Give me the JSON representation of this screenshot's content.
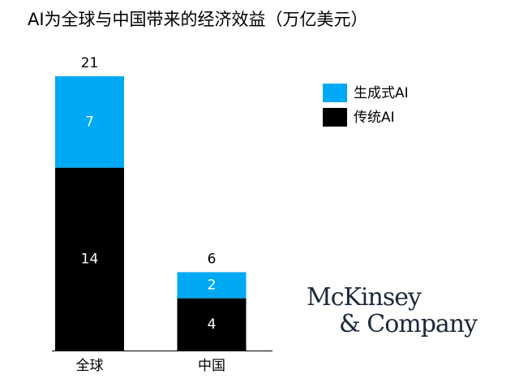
{
  "chart_data": {
    "type": "stacked-bar",
    "title": "AI为全球与中国带来的经济效益（万亿美元）",
    "categories": [
      "全球",
      "中国"
    ],
    "series": [
      {
        "name": "传统AI",
        "color": "#000000",
        "values": [
          14,
          4
        ]
      },
      {
        "name": "生成式AI",
        "color": "#00a9f4",
        "values": [
          7,
          2
        ]
      }
    ],
    "totals": [
      21,
      6
    ],
    "ylim": [
      0,
      21
    ],
    "logo": [
      "McKinsey",
      "& Company"
    ]
  }
}
